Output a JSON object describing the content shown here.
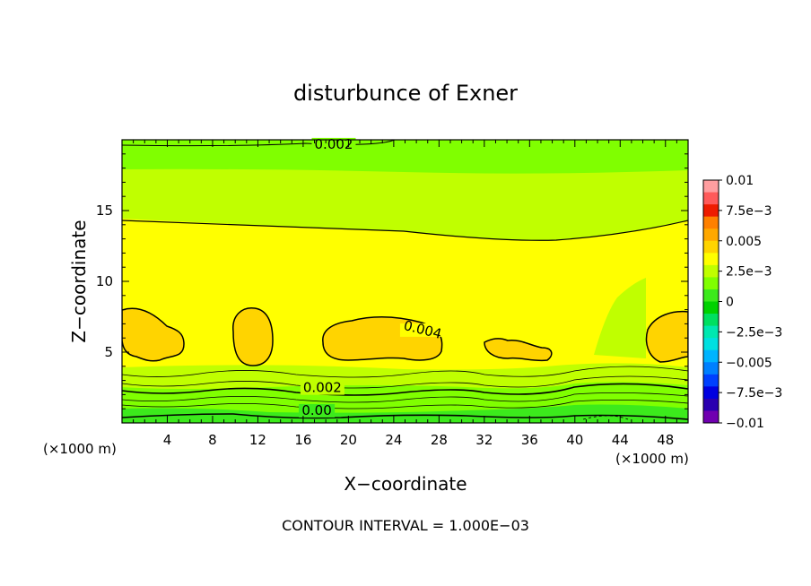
{
  "chart_data": {
    "type": "heatmap",
    "title": "disturbunce of Exner",
    "xlabel": "X−coordinate",
    "ylabel": "Z−coordinate",
    "x_unit": "(×1000 m)",
    "xlim": [
      0,
      50
    ],
    "ylim": [
      0,
      20
    ],
    "x_ticks": [
      4,
      8,
      12,
      16,
      20,
      24,
      28,
      32,
      36,
      40,
      44,
      48
    ],
    "x_tick_labels": [
      "4",
      "8",
      "12",
      "16",
      "20",
      "24",
      "28",
      "32",
      "36",
      "40",
      "44",
      "48"
    ],
    "y_ticks": [
      5,
      10,
      15
    ],
    "y_tick_labels": [
      "5",
      "10",
      "15"
    ],
    "contour_labels": [
      {
        "text": "0.002",
        "x": 18.7,
        "z": 19.5
      },
      {
        "text": "0.004",
        "x": 26.5,
        "z": 6.4
      },
      {
        "text": "0.002",
        "x": 17.7,
        "z": 2.3
      },
      {
        "text": "0.00",
        "x": 17.2,
        "z": 0.7
      }
    ],
    "contour_interval_text": "CONTOUR INTERVAL = 1.000E−03",
    "colorbar": {
      "min": -0.01,
      "max": 0.01,
      "tick_values": [
        0.01,
        0.0075,
        0.005,
        0.0025,
        0,
        -0.0025,
        -0.005,
        -0.0075,
        -0.01
      ],
      "tick_labels": [
        "0.01",
        "7.5e−3",
        "0.005",
        "2.5e−3",
        "0",
        "−2.5e−3",
        "−0.005",
        "−7.5e−3",
        "−0.01"
      ],
      "colors": [
        "#ff9ea0",
        "#ff5a5a",
        "#ee1c00",
        "#ff8000",
        "#ffa800",
        "#ffd400",
        "#ffff00",
        "#c0ff00",
        "#80ff00",
        "#3cea1c",
        "#00d200",
        "#00e060",
        "#00e8b0",
        "#00e0e0",
        "#00b4ff",
        "#0080ff",
        "#0040ff",
        "#0000e0",
        "#2a00b0",
        "#7000b0"
      ]
    }
  }
}
